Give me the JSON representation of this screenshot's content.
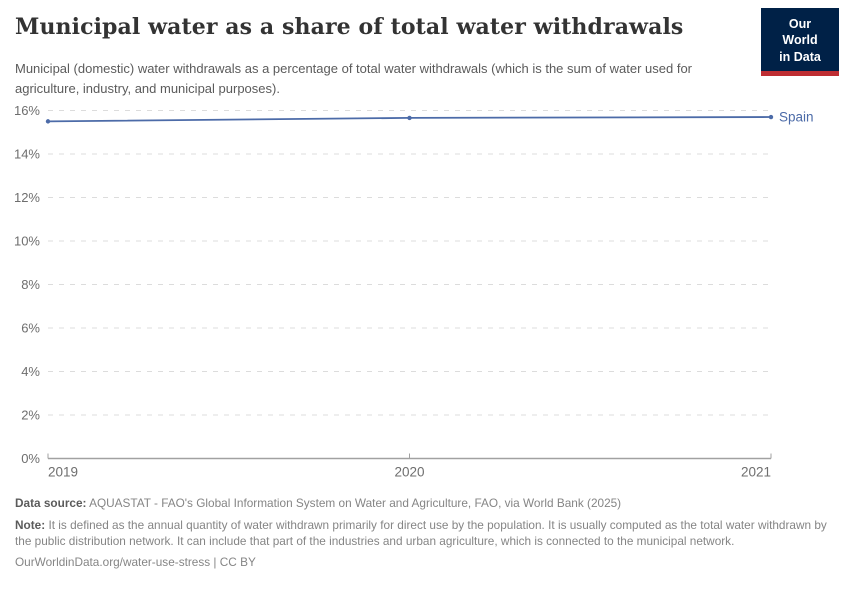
{
  "header": {
    "title": "Municipal water as a share of total water withdrawals",
    "subtitle": "Municipal (domestic) water withdrawals as a percentage of total water withdrawals (which is the sum of water used for agriculture, industry, and municipal purposes).",
    "logo": {
      "line1": "Our World",
      "line2": "in Data"
    }
  },
  "chart_data": {
    "type": "line",
    "title": "Municipal water as a share of total water withdrawals",
    "x": [
      2019,
      2020,
      2021
    ],
    "series": [
      {
        "name": "Spain",
        "color": "#4c6ba8",
        "values": [
          15.5,
          15.66,
          15.7
        ]
      }
    ],
    "xticks": [
      2019,
      2020,
      2021
    ],
    "yticks": [
      0,
      2,
      4,
      6,
      8,
      10,
      12,
      14,
      16
    ],
    "ytick_suffix": "%",
    "xlim": [
      2019,
      2021
    ],
    "ylim": [
      0,
      16
    ],
    "grid": true,
    "legend_position": "end-of-line"
  },
  "footer": {
    "data_source_label": "Data source:",
    "data_source": "AQUASTAT - FAO's Global Information System on Water and Agriculture, FAO, via World Bank (2025)",
    "note_label": "Note:",
    "note": "It is defined as the annual quantity of water withdrawn primarily for direct use by the population. It is usually computed as the total water withdrawn by the public distribution network. It can include that part of the industries and urban agriculture, which is connected to the municipal network.",
    "citation": "OurWorldinData.org/water-use-stress | CC BY"
  },
  "colors": {
    "series_blue": "#4c6ba8",
    "logo_bg": "#002147",
    "logo_stripe": "#be2d32",
    "grid": "#dcdcdc",
    "axis": "#a1a1a1",
    "tick_text": "#6e6e6e",
    "title_text": "#333333",
    "subtitle_text": "#5b5b5b",
    "footer_text": "#858585"
  }
}
